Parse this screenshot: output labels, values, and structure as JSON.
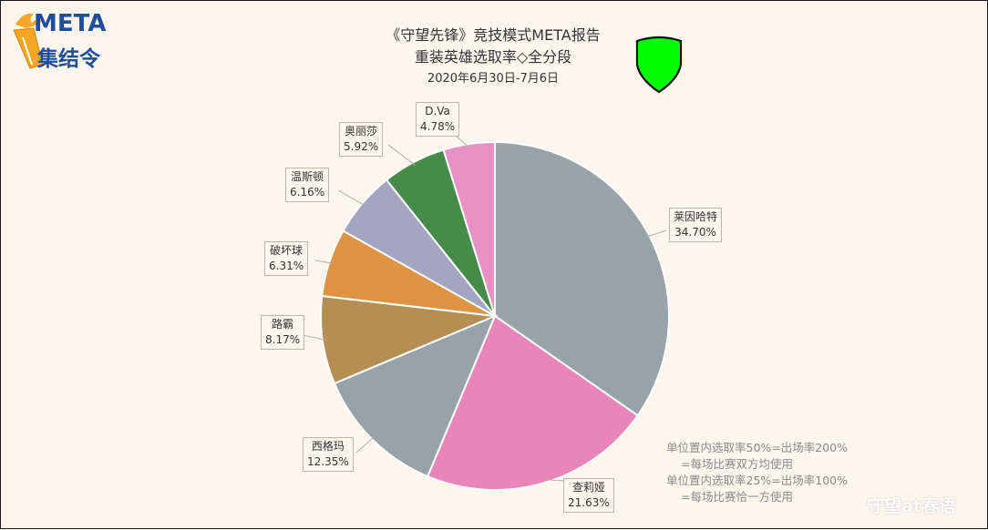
{
  "logo": {
    "text_top": "META",
    "text_bottom": "集结令"
  },
  "watermark": "守望at春语",
  "notes": [
    "单位置内选取率50%=出场率200%",
    "=每场比赛双方均使用",
    "单位置内选取率25%=出场率100%",
    "=每场比赛恰一方使用"
  ],
  "chart_data": {
    "type": "pie",
    "title": "《守望先锋》竞技模式META报告",
    "subtitle": "重装英雄选取率◇全分段",
    "date_range": "2020年6月30日-7月6日",
    "legend": "none",
    "slices": [
      {
        "label": "莱因哈特",
        "value": 34.7,
        "value_label": "34.70%",
        "color": "#98a3a9"
      },
      {
        "label": "查莉娅",
        "value": 21.63,
        "value_label": "21.63%",
        "color": "#e985b8"
      },
      {
        "label": "西格玛",
        "value": 12.35,
        "value_label": "12.35%",
        "color": "#98a3a9"
      },
      {
        "label": "路霸",
        "value": 8.17,
        "value_label": "8.17%",
        "color": "#b48e52"
      },
      {
        "label": "破坏球",
        "value": 6.31,
        "value_label": "6.31%",
        "color": "#de9442"
      },
      {
        "label": "温斯顿",
        "value": 6.16,
        "value_label": "6.16%",
        "color": "#a3a6c0"
      },
      {
        "label": "奥丽莎",
        "value": 5.92,
        "value_label": "5.92%",
        "color": "#468b48"
      },
      {
        "label": "D.Va",
        "value": 4.78,
        "value_label": "4.78%",
        "color": "#e990c4"
      }
    ]
  },
  "colors": {
    "background": "#fdf6ec",
    "shield": "#00ff00",
    "logo_blue": "#1f4e9a",
    "logo_orange": "#f5a623"
  }
}
